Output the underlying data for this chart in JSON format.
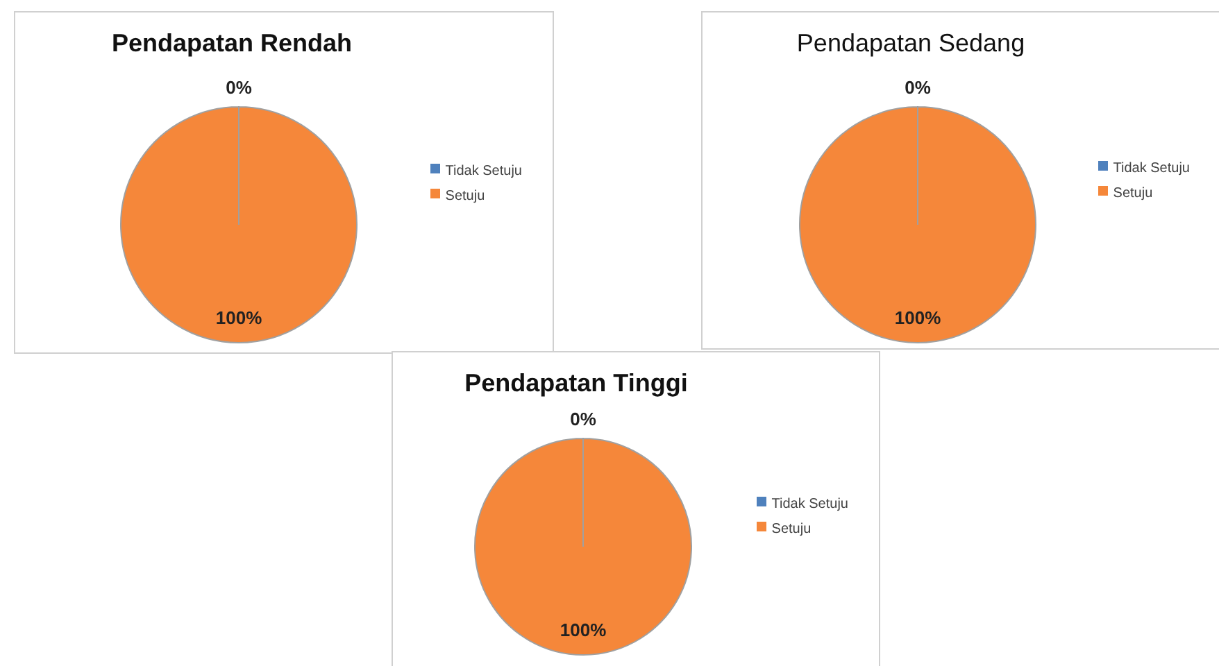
{
  "chart_data": [
    {
      "type": "pie",
      "title": "Pendapatan Rendah",
      "categories": [
        "Tidak Setuju",
        "Setuju"
      ],
      "values": [
        0,
        100
      ],
      "value_labels": [
        "0%",
        "100%"
      ],
      "colors": [
        "#4f81bd",
        "#f5873a"
      ],
      "legend": "right"
    },
    {
      "type": "pie",
      "title": "Pendapatan Sedang",
      "categories": [
        "Tidak Setuju",
        "Setuju"
      ],
      "values": [
        0,
        100
      ],
      "value_labels": [
        "0%",
        "100%"
      ],
      "colors": [
        "#4f81bd",
        "#f5873a"
      ],
      "legend": "right"
    },
    {
      "type": "pie",
      "title": "Pendapatan Tinggi",
      "categories": [
        "Tidak Setuju",
        "Setuju"
      ],
      "values": [
        0,
        100
      ],
      "value_labels": [
        "0%",
        "100%"
      ],
      "colors": [
        "#4f81bd",
        "#f5873a"
      ],
      "legend": "right"
    }
  ]
}
